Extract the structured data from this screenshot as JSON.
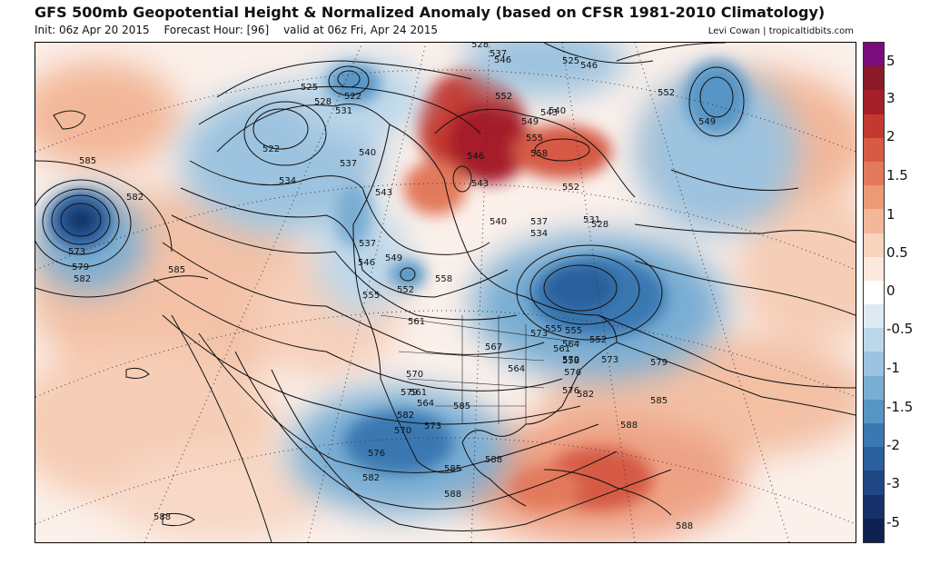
{
  "header": {
    "title": "GFS 500mb Geopotential Height & Normalized Anomaly (based on CFSR 1981-2010 Climatology)",
    "init": "Init: 06z Apr 20 2015",
    "forecast_hour": "Forecast Hour: [96]",
    "valid": "valid at 06z Fri, Apr 24 2015",
    "credit": "Levi Cowan | tropicaltidbits.com"
  },
  "colorbar": {
    "colors": [
      "#7a0c7e",
      "#8a1a26",
      "#a51f2b",
      "#c4392f",
      "#d65a45",
      "#e3795c",
      "#ec9977",
      "#f3b89a",
      "#f8d3be",
      "#fce8dc",
      "#ffffff",
      "#dde9f3",
      "#bdd7ea",
      "#9cc3df",
      "#79add3",
      "#5795c5",
      "#3a78b2",
      "#2a5e9c",
      "#204683",
      "#17326a",
      "#0f2150"
    ],
    "labels": [
      "5",
      "3",
      "2",
      "1.5",
      "1",
      "0.5",
      "0",
      "-0.5",
      "-1",
      "-1.5",
      "-2",
      "-3",
      "-5"
    ]
  },
  "contour_labels": [
    "585",
    "582",
    "573",
    "579",
    "582",
    "585",
    "525",
    "528",
    "531",
    "522",
    "522",
    "534",
    "537",
    "540",
    "543",
    "537",
    "546",
    "549",
    "552",
    "555",
    "558",
    "561",
    "564",
    "567",
    "570",
    "573",
    "576",
    "579",
    "582",
    "585",
    "588",
    "546",
    "552",
    "549",
    "543",
    "540",
    "528",
    "537",
    "525",
    "555",
    "558",
    "552",
    "546",
    "543",
    "540",
    "537",
    "534",
    "531",
    "528",
    "552",
    "555",
    "558",
    "561",
    "564",
    "570",
    "573",
    "576",
    "579",
    "582",
    "585",
    "588",
    "546",
    "552",
    "549",
    "588",
    "588",
    "561",
    "564",
    "570",
    "573",
    "576",
    "582",
    "585",
    "588",
    "555"
  ]
}
